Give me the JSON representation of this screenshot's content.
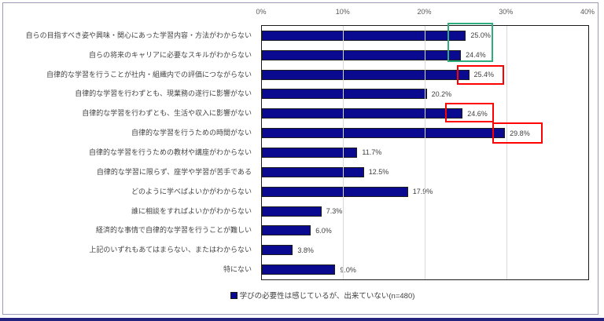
{
  "chart": {
    "colors": {
      "bar_fill": "#0a0a90",
      "bar_border": "#1c1c1c",
      "gridline": "#d9d9d9",
      "plot_border": "#1a1a1a",
      "frame_border": "#9b9ab7",
      "bottom_rule": "#23237f",
      "highlight_green": "#2eae7d",
      "highlight_red": "#fe0000"
    }
  },
  "chart_data": {
    "type": "bar",
    "orientation": "horizontal",
    "title": "",
    "xlabel": "",
    "ylabel": "",
    "xlim": [
      0,
      40
    ],
    "x_ticks": [
      "0%",
      "10%",
      "20%",
      "30%",
      "40%"
    ],
    "grid": "vertical",
    "legend_position": "bottom",
    "legend": "学びの必要性は感じているが、出来ていない(n=480)",
    "categories": [
      "自らの目指すべき姿や興味・関心にあった学習内容・方法がわからない",
      "自らの将来のキャリアに必要なスキルがわからない",
      "自律的な学習を行うことが社内・組織内での評価につながらない",
      "自律的な学習を行わずとも、現業務の遂行に影響がない",
      "自律的な学習を行わずとも、生活や収入に影響がない",
      "自律的な学習を行うための時間がない",
      "自律的な学習を行うための教材や講座がわからない",
      "自律的な学習に限らず、座学や学習が苦手である",
      "どのように学べばよいかがわからない",
      "誰に相談をすればよいかがわからない",
      "経済的な事情で自律的な学習を行うことが難しい",
      "上記のいずれもあてはまらない、またはわからない",
      "特にない"
    ],
    "values": [
      25.0,
      24.4,
      25.4,
      20.2,
      24.6,
      29.8,
      11.7,
      12.5,
      17.9,
      7.3,
      6.0,
      3.8,
      9.0
    ],
    "annotations": [
      {
        "shape": "rect",
        "color": "green",
        "highlights": [
          "25.0%",
          "24.4%"
        ]
      },
      {
        "shape": "rect",
        "color": "red",
        "highlights": [
          "25.4%"
        ]
      },
      {
        "shape": "rect",
        "color": "red",
        "highlights": [
          "24.6%"
        ]
      },
      {
        "shape": "rect",
        "color": "red",
        "highlights": [
          "29.8%"
        ]
      }
    ]
  }
}
